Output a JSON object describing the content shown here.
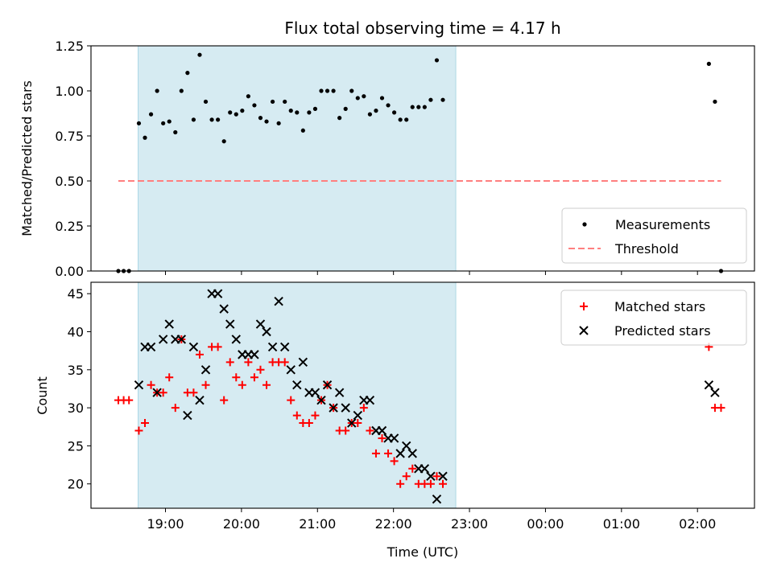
{
  "chart_data": {
    "type": "scatter",
    "title": "Flux total observing time = 4.17 h",
    "xlabel": "Time (UTC)",
    "x_units": "hours since 19:00 UTC",
    "xlim": [
      -0.98,
      7.75
    ],
    "xticks": [
      0,
      1,
      2,
      3,
      4,
      5,
      6,
      7
    ],
    "xtick_labels": [
      "19:00",
      "20:00",
      "21:00",
      "22:00",
      "23:00",
      "00:00",
      "01:00",
      "02:00"
    ],
    "shaded_span": [
      -0.36,
      3.82
    ],
    "shaded_color": "#add8e6",
    "panels": [
      {
        "id": "ratio",
        "ylabel": "Matched/Predicted stars",
        "ylim": [
          0,
          1.25
        ],
        "yticks": [
          0,
          0.25,
          0.5,
          0.75,
          1.0,
          1.25
        ],
        "ytick_labels": [
          "0.00",
          "0.25",
          "0.50",
          "0.75",
          "1.00",
          "1.25"
        ],
        "legend_position": "lower-right",
        "series": [
          {
            "name": "Measurements",
            "marker": "dot",
            "color": "#000000",
            "points": [
              [
                -0.62,
                0
              ],
              [
                -0.55,
                0
              ],
              [
                -0.48,
                0
              ],
              [
                -0.35,
                0.82
              ],
              [
                -0.27,
                0.74
              ],
              [
                -0.19,
                0.87
              ],
              [
                -0.11,
                1.0
              ],
              [
                -0.03,
                0.82
              ],
              [
                0.05,
                0.83
              ],
              [
                0.13,
                0.77
              ],
              [
                0.21,
                1.0
              ],
              [
                0.29,
                1.1
              ],
              [
                0.37,
                0.84
              ],
              [
                0.45,
                1.2
              ],
              [
                0.53,
                0.94
              ],
              [
                0.61,
                0.84
              ],
              [
                0.69,
                0.84
              ],
              [
                0.77,
                0.72
              ],
              [
                0.85,
                0.88
              ],
              [
                0.93,
                0.87
              ],
              [
                1.01,
                0.89
              ],
              [
                1.09,
                0.97
              ],
              [
                1.17,
                0.92
              ],
              [
                1.25,
                0.85
              ],
              [
                1.33,
                0.83
              ],
              [
                1.41,
                0.94
              ],
              [
                1.49,
                0.82
              ],
              [
                1.57,
                0.94
              ],
              [
                1.65,
                0.89
              ],
              [
                1.73,
                0.88
              ],
              [
                1.81,
                0.78
              ],
              [
                1.89,
                0.88
              ],
              [
                1.97,
                0.9
              ],
              [
                2.05,
                1.0
              ],
              [
                2.13,
                1.0
              ],
              [
                2.21,
                1.0
              ],
              [
                2.29,
                0.85
              ],
              [
                2.37,
                0.9
              ],
              [
                2.45,
                1.0
              ],
              [
                2.53,
                0.96
              ],
              [
                2.61,
                0.97
              ],
              [
                2.69,
                0.87
              ],
              [
                2.77,
                0.89
              ],
              [
                2.85,
                0.96
              ],
              [
                2.93,
                0.92
              ],
              [
                3.01,
                0.88
              ],
              [
                3.09,
                0.84
              ],
              [
                3.17,
                0.84
              ],
              [
                3.25,
                0.91
              ],
              [
                3.33,
                0.91
              ],
              [
                3.41,
                0.91
              ],
              [
                3.49,
                0.95
              ],
              [
                3.57,
                1.17
              ],
              [
                3.65,
                0.95
              ],
              [
                7.15,
                1.15
              ],
              [
                7.23,
                0.94
              ],
              [
                7.31,
                0.0
              ]
            ]
          },
          {
            "name": "Threshold",
            "marker": "dashed-line",
            "color": "#ff7f7f",
            "x": [
              -0.62,
              7.31
            ],
            "y": [
              0.5,
              0.5
            ]
          }
        ]
      },
      {
        "id": "count",
        "ylabel": "Count",
        "ylim": [
          16.8,
          46.5
        ],
        "yticks": [
          20,
          25,
          30,
          35,
          40,
          45
        ],
        "ytick_labels": [
          "20",
          "25",
          "30",
          "35",
          "40",
          "45"
        ],
        "legend_position": "top-right",
        "series": [
          {
            "name": "Matched stars",
            "marker": "plus",
            "color": "#ff0000",
            "points": [
              [
                -0.62,
                31
              ],
              [
                -0.55,
                31
              ],
              [
                -0.48,
                31
              ],
              [
                -0.35,
                27
              ],
              [
                -0.27,
                28
              ],
              [
                -0.19,
                33
              ],
              [
                -0.11,
                32
              ],
              [
                -0.03,
                32
              ],
              [
                0.05,
                34
              ],
              [
                0.13,
                30
              ],
              [
                0.21,
                39
              ],
              [
                0.29,
                32
              ],
              [
                0.37,
                32
              ],
              [
                0.45,
                37
              ],
              [
                0.53,
                33
              ],
              [
                0.61,
                38
              ],
              [
                0.69,
                38
              ],
              [
                0.77,
                31
              ],
              [
                0.85,
                36
              ],
              [
                0.93,
                34
              ],
              [
                1.01,
                33
              ],
              [
                1.09,
                36
              ],
              [
                1.17,
                34
              ],
              [
                1.25,
                35
              ],
              [
                1.33,
                33
              ],
              [
                1.41,
                36
              ],
              [
                1.49,
                36
              ],
              [
                1.57,
                36
              ],
              [
                1.65,
                31
              ],
              [
                1.73,
                29
              ],
              [
                1.81,
                28
              ],
              [
                1.89,
                28
              ],
              [
                1.97,
                29
              ],
              [
                2.05,
                31
              ],
              [
                2.13,
                33
              ],
              [
                2.21,
                30
              ],
              [
                2.29,
                27
              ],
              [
                2.37,
                27
              ],
              [
                2.45,
                28
              ],
              [
                2.53,
                28
              ],
              [
                2.61,
                30
              ],
              [
                2.69,
                27
              ],
              [
                2.77,
                24
              ],
              [
                2.85,
                26
              ],
              [
                2.93,
                24
              ],
              [
                3.01,
                23
              ],
              [
                3.09,
                20
              ],
              [
                3.17,
                21
              ],
              [
                3.25,
                22
              ],
              [
                3.33,
                20
              ],
              [
                3.41,
                20
              ],
              [
                3.49,
                20
              ],
              [
                3.57,
                21
              ],
              [
                3.65,
                20
              ],
              [
                7.15,
                38
              ],
              [
                7.23,
                30
              ],
              [
                7.31,
                30
              ]
            ]
          },
          {
            "name": "Predicted stars",
            "marker": "x",
            "color": "#000000",
            "points": [
              [
                -0.35,
                33
              ],
              [
                -0.27,
                38
              ],
              [
                -0.19,
                38
              ],
              [
                -0.11,
                32
              ],
              [
                -0.03,
                39
              ],
              [
                0.05,
                41
              ],
              [
                0.13,
                39
              ],
              [
                0.21,
                39
              ],
              [
                0.29,
                29
              ],
              [
                0.37,
                38
              ],
              [
                0.45,
                31
              ],
              [
                0.53,
                35
              ],
              [
                0.61,
                45
              ],
              [
                0.69,
                45
              ],
              [
                0.77,
                43
              ],
              [
                0.85,
                41
              ],
              [
                0.93,
                39
              ],
              [
                1.01,
                37
              ],
              [
                1.09,
                37
              ],
              [
                1.17,
                37
              ],
              [
                1.25,
                41
              ],
              [
                1.33,
                40
              ],
              [
                1.41,
                38
              ],
              [
                1.49,
                44
              ],
              [
                1.57,
                38
              ],
              [
                1.65,
                35
              ],
              [
                1.73,
                33
              ],
              [
                1.81,
                36
              ],
              [
                1.89,
                32
              ],
              [
                1.97,
                32
              ],
              [
                2.05,
                31
              ],
              [
                2.13,
                33
              ],
              [
                2.21,
                30
              ],
              [
                2.29,
                32
              ],
              [
                2.37,
                30
              ],
              [
                2.45,
                28
              ],
              [
                2.53,
                29
              ],
              [
                2.61,
                31
              ],
              [
                2.69,
                31
              ],
              [
                2.77,
                27
              ],
              [
                2.85,
                27
              ],
              [
                2.93,
                26
              ],
              [
                3.01,
                26
              ],
              [
                3.09,
                24
              ],
              [
                3.17,
                25
              ],
              [
                3.25,
                24
              ],
              [
                3.33,
                22
              ],
              [
                3.41,
                22
              ],
              [
                3.49,
                21
              ],
              [
                3.57,
                18
              ],
              [
                3.65,
                21
              ],
              [
                7.15,
                33
              ],
              [
                7.23,
                32
              ]
            ]
          }
        ]
      }
    ]
  }
}
